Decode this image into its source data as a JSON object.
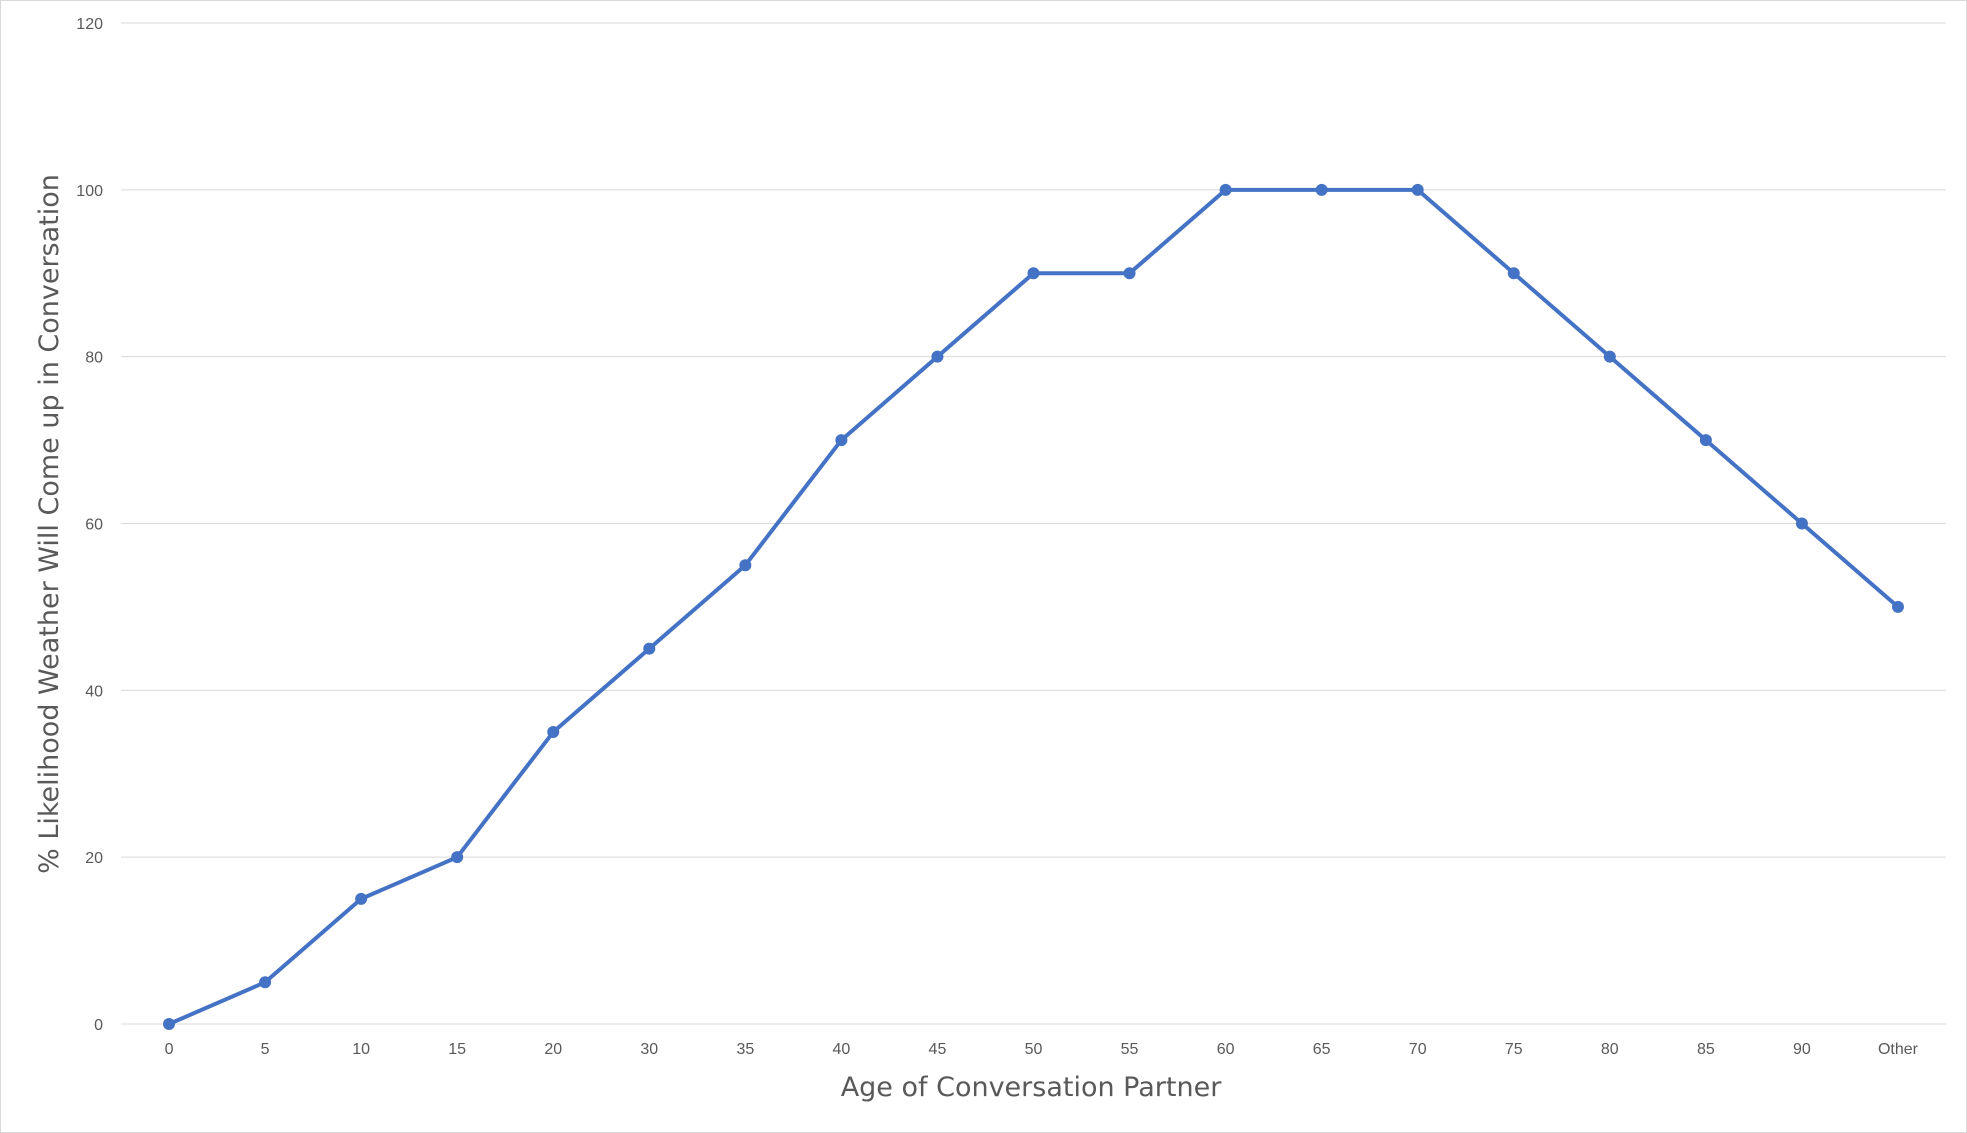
{
  "chart_data": {
    "type": "line",
    "title": "",
    "xlabel": "Age of Conversation Partner",
    "ylabel": "% Likelihood Weather Will Come up in Conversation",
    "categories": [
      "0",
      "5",
      "10",
      "15",
      "20",
      "30",
      "35",
      "40",
      "45",
      "50",
      "55",
      "60",
      "65",
      "70",
      "75",
      "80",
      "85",
      "90",
      "Other"
    ],
    "series": [
      {
        "values": [
          0,
          5,
          15,
          20,
          35,
          45,
          55,
          70,
          80,
          90,
          90,
          100,
          100,
          100,
          90,
          80,
          70,
          60,
          50
        ],
        "color": "#4472C4"
      }
    ],
    "ylim": [
      0,
      120
    ],
    "yticks": [
      0,
      20,
      40,
      60,
      80,
      100,
      120
    ],
    "grid": true,
    "legend": "none",
    "colors": {
      "line": "#4472C4",
      "grid": "#d9d9d9",
      "text": "#595959"
    }
  }
}
